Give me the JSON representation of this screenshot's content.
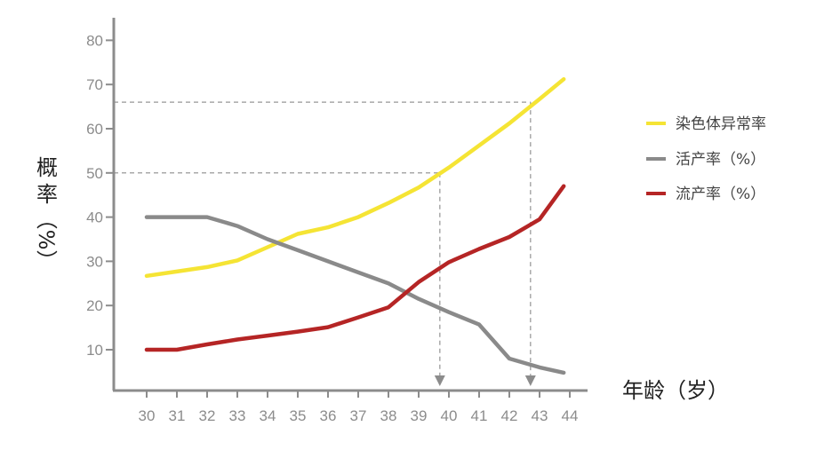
{
  "chart_data": {
    "type": "line",
    "title": "",
    "xlabel": "年龄（岁）",
    "ylabel_chars": [
      "概",
      "率"
    ],
    "ylabel_unit": "（%）",
    "x": [
      30,
      31,
      32,
      33,
      34,
      35,
      36,
      37,
      38,
      39,
      40,
      41,
      42,
      43,
      44
    ],
    "xlim": [
      29.5,
      44.5
    ],
    "ylim": [
      4,
      84
    ],
    "yticks": [
      10,
      20,
      30,
      40,
      50,
      60,
      70,
      80
    ],
    "grid": false,
    "legend_position": "right",
    "series": [
      {
        "name": "染色体异常率",
        "color": "#f5e434",
        "points": [
          [
            30,
            26.7
          ],
          [
            31,
            27.7
          ],
          [
            32,
            28.7
          ],
          [
            33,
            30.2
          ],
          [
            34,
            33.2
          ],
          [
            35,
            36.2
          ],
          [
            36,
            37.7
          ],
          [
            37,
            40
          ],
          [
            38,
            43.2
          ],
          [
            39,
            46.7
          ],
          [
            40,
            51.2
          ],
          [
            41,
            56.2
          ],
          [
            42,
            61.2
          ],
          [
            43,
            66.7
          ],
          [
            43.8,
            71.2
          ]
        ]
      },
      {
        "name": "活产率（%）",
        "color": "#8a8a8a",
        "points": [
          [
            30,
            40
          ],
          [
            31,
            40
          ],
          [
            32,
            40
          ],
          [
            33,
            38
          ],
          [
            34,
            35
          ],
          [
            35,
            32.5
          ],
          [
            36,
            30
          ],
          [
            37,
            27.5
          ],
          [
            38,
            25
          ],
          [
            39,
            21.5
          ],
          [
            40,
            18.5
          ],
          [
            41,
            15.7
          ],
          [
            42,
            8
          ],
          [
            43,
            6
          ],
          [
            43.8,
            4.8
          ]
        ]
      },
      {
        "name": "流产率（%）",
        "color": "#b52525",
        "points": [
          [
            30,
            10
          ],
          [
            31,
            10
          ],
          [
            32,
            11.2
          ],
          [
            33,
            12.3
          ],
          [
            34,
            13.2
          ],
          [
            35,
            14.1
          ],
          [
            36,
            15.1
          ],
          [
            37,
            17.3
          ],
          [
            38,
            19.6
          ],
          [
            39,
            25.3
          ],
          [
            40,
            29.8
          ],
          [
            41,
            32.8
          ],
          [
            42,
            35.5
          ],
          [
            43,
            39.5
          ],
          [
            43.8,
            47
          ]
        ]
      }
    ],
    "annotations": [
      {
        "kind": "dashed-guide",
        "x": 39.7,
        "y": 50
      },
      {
        "kind": "dashed-guide",
        "x": 42.7,
        "y": 66
      }
    ]
  }
}
